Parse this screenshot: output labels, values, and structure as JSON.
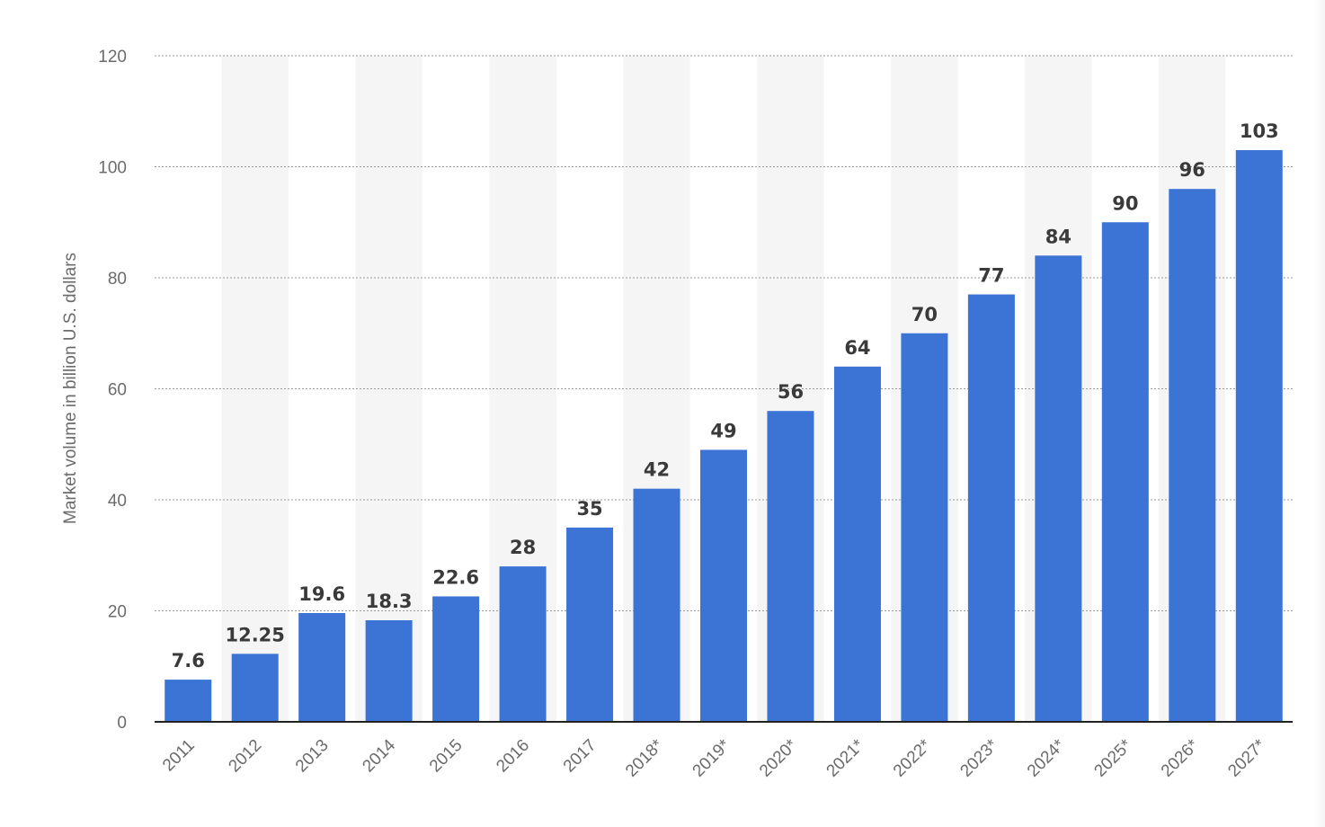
{
  "chart_data": {
    "type": "bar",
    "title": "",
    "xlabel": "",
    "ylabel": "Market volume in billion U.S. dollars",
    "categories": [
      "2011",
      "2012",
      "2013",
      "2014",
      "2015",
      "2016",
      "2017",
      "2018*",
      "2019*",
      "2020*",
      "2021*",
      "2022*",
      "2023*",
      "2024*",
      "2025*",
      "2026*",
      "2027*"
    ],
    "values": [
      7.6,
      12.25,
      19.6,
      18.3,
      22.6,
      28,
      35,
      42,
      49,
      56,
      64,
      70,
      77,
      84,
      90,
      96,
      103
    ],
    "value_labels": [
      "7.6",
      "12.25",
      "19.6",
      "18.3",
      "22.6",
      "28",
      "35",
      "42",
      "49",
      "56",
      "64",
      "70",
      "77",
      "84",
      "90",
      "96",
      "103"
    ],
    "ylim": [
      0,
      120
    ],
    "yticks": [
      "0",
      "20",
      "40",
      "60",
      "80",
      "100",
      "120"
    ],
    "grid": true,
    "bar_color": "#3c74d6",
    "band_color": "#f5f5f5"
  }
}
